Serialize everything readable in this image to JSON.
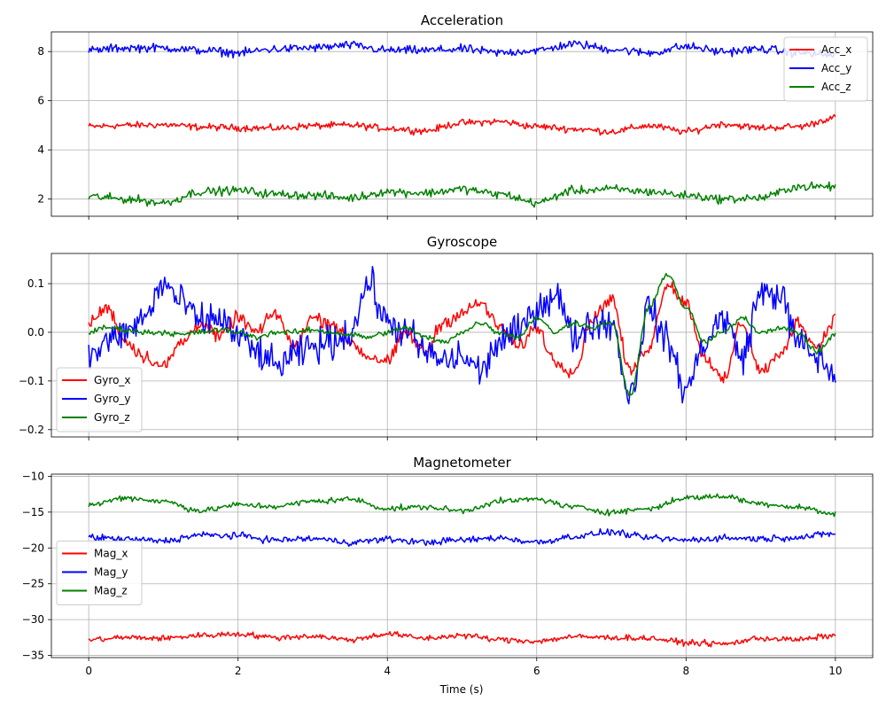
{
  "figure": {
    "xlabel": "Time (s)"
  },
  "chart_data": [
    {
      "type": "line",
      "title": "Acceleration",
      "xlabel": "",
      "ylabel": "",
      "xlim": [
        -0.5,
        10.5
      ],
      "ylim": [
        1.3,
        8.8
      ],
      "xticks": [
        0,
        2,
        4,
        6,
        8,
        10
      ],
      "yticks": [
        2,
        4,
        6,
        8
      ],
      "grid": true,
      "legend": "top-right",
      "series": [
        {
          "name": "Acc_x",
          "color": "#ff0000",
          "base": 5.0,
          "noise": 0.12,
          "x": [
            0,
            0.5,
            1,
            1.5,
            2,
            2.5,
            3,
            3.5,
            4,
            4.5,
            5,
            5.5,
            6,
            6.5,
            7,
            7.5,
            8,
            8.5,
            9,
            9.5,
            10
          ],
          "values": [
            4.95,
            5.0,
            5.02,
            4.93,
            4.9,
            4.88,
            4.98,
            5.0,
            4.88,
            4.78,
            5.1,
            5.15,
            4.95,
            4.85,
            4.75,
            4.98,
            4.75,
            5.05,
            4.9,
            4.95,
            5.3
          ]
        },
        {
          "name": "Acc_y",
          "color": "#0000ff",
          "base": 8.1,
          "noise": 0.15,
          "x": [
            0,
            0.5,
            1,
            1.5,
            2,
            2.5,
            3,
            3.5,
            4,
            4.5,
            5,
            5.5,
            6,
            6.5,
            7,
            7.5,
            8,
            8.5,
            9,
            9.5,
            10
          ],
          "values": [
            8.05,
            8.15,
            8.15,
            8.05,
            7.95,
            8.1,
            8.15,
            8.25,
            8.05,
            8.05,
            8.1,
            7.95,
            8.05,
            8.3,
            8.1,
            7.95,
            8.2,
            8.0,
            8.1,
            7.95,
            7.85
          ]
        },
        {
          "name": "Acc_z",
          "color": "#008000",
          "base": 2.2,
          "noise": 0.15,
          "x": [
            0,
            0.5,
            1,
            1.5,
            2,
            2.5,
            3,
            3.5,
            4,
            4.5,
            5,
            5.5,
            6,
            6.5,
            7,
            7.5,
            8,
            8.5,
            9,
            9.5,
            10
          ],
          "values": [
            2.1,
            2.0,
            1.85,
            2.3,
            2.35,
            2.2,
            2.15,
            2.05,
            2.3,
            2.25,
            2.4,
            2.2,
            1.85,
            2.35,
            2.4,
            2.3,
            2.15,
            2.0,
            2.05,
            2.5,
            2.5
          ]
        }
      ]
    },
    {
      "type": "line",
      "title": "Gyroscope",
      "xlabel": "",
      "ylabel": "",
      "xlim": [
        -0.5,
        10.5
      ],
      "ylim": [
        -0.215,
        0.162
      ],
      "xticks": [
        0,
        2,
        4,
        6,
        8,
        10
      ],
      "yticks": [
        -0.2,
        -0.1,
        0.0,
        0.1
      ],
      "ytick_labels": [
        "−0.2",
        "−0.1",
        "0.0",
        "0.1"
      ],
      "grid": true,
      "legend": "lower-left",
      "series": [
        {
          "name": "Gyro_x",
          "color": "#ff0000",
          "base": 0.0,
          "noise": 0.012,
          "x": [
            0,
            0.25,
            0.5,
            0.75,
            1,
            1.25,
            1.5,
            1.75,
            2,
            2.25,
            2.5,
            2.75,
            3,
            3.25,
            3.5,
            3.75,
            4,
            4.25,
            4.5,
            4.75,
            5,
            5.25,
            5.5,
            5.75,
            6,
            6.25,
            6.5,
            6.75,
            7,
            7.25,
            7.5,
            7.75,
            8,
            8.25,
            8.5,
            8.75,
            9,
            9.25,
            9.5,
            9.75,
            10
          ],
          "values": [
            0.02,
            0.05,
            -0.02,
            -0.05,
            -0.07,
            -0.02,
            0.02,
            -0.01,
            0.03,
            0.0,
            0.04,
            -0.03,
            0.03,
            0.02,
            -0.02,
            -0.05,
            -0.06,
            0.0,
            -0.04,
            0.02,
            0.04,
            0.06,
            0.01,
            -0.03,
            0.01,
            -0.06,
            -0.08,
            0.03,
            0.07,
            -0.08,
            -0.03,
            0.1,
            0.06,
            -0.05,
            -0.1,
            0.02,
            -0.08,
            -0.05,
            0.02,
            -0.03,
            0.03
          ]
        },
        {
          "name": "Gyro_y",
          "color": "#0000ff",
          "base": 0.0,
          "noise": 0.03,
          "x": [
            0,
            0.25,
            0.5,
            0.75,
            1,
            1.25,
            1.5,
            1.75,
            2,
            2.25,
            2.5,
            2.75,
            3,
            3.25,
            3.5,
            3.75,
            4,
            4.25,
            4.5,
            4.75,
            5,
            5.25,
            5.5,
            5.75,
            6,
            6.25,
            6.5,
            6.75,
            7,
            7.25,
            7.5,
            7.75,
            8,
            8.25,
            8.5,
            8.75,
            9,
            9.25,
            9.5,
            9.75,
            10
          ],
          "values": [
            -0.05,
            -0.02,
            0.0,
            0.03,
            0.1,
            0.06,
            0.02,
            0.03,
            -0.01,
            -0.04,
            -0.07,
            -0.05,
            -0.03,
            -0.02,
            0.0,
            0.1,
            0.02,
            0.0,
            -0.04,
            -0.06,
            -0.05,
            -0.08,
            -0.02,
            0.0,
            0.05,
            0.08,
            -0.01,
            0.02,
            0.02,
            -0.13,
            0.05,
            -0.02,
            -0.12,
            -0.02,
            0.03,
            -0.05,
            0.08,
            0.08,
            -0.02,
            -0.05,
            -0.09
          ]
        },
        {
          "name": "Gyro_z",
          "color": "#008000",
          "base": 0.0,
          "noise": 0.005,
          "x": [
            0,
            0.25,
            0.5,
            0.75,
            1,
            1.25,
            1.5,
            1.75,
            2,
            2.25,
            2.5,
            2.75,
            3,
            3.25,
            3.5,
            3.75,
            4,
            4.25,
            4.5,
            4.75,
            5,
            5.25,
            5.5,
            5.75,
            6,
            6.25,
            6.5,
            6.75,
            7,
            7.25,
            7.5,
            7.75,
            8,
            8.25,
            8.5,
            8.75,
            9,
            9.25,
            9.5,
            9.75,
            10
          ],
          "values": [
            0.0,
            0.01,
            0.005,
            0.0,
            0.0,
            -0.005,
            0.0,
            0.005,
            0.0,
            -0.01,
            0.0,
            0.0,
            0.005,
            0.0,
            -0.005,
            -0.01,
            0.0,
            0.01,
            -0.01,
            -0.02,
            0.0,
            0.02,
            0.0,
            -0.01,
            0.03,
            0.0,
            0.02,
            0.01,
            0.02,
            -0.13,
            0.05,
            0.12,
            0.05,
            -0.02,
            0.0,
            0.03,
            0.0,
            0.01,
            0.0,
            -0.04,
            -0.005
          ]
        }
      ]
    },
    {
      "type": "line",
      "title": "Magnetometer",
      "xlabel": "Time (s)",
      "ylabel": "",
      "xlim": [
        -0.5,
        10.5
      ],
      "ylim": [
        -35.3,
        -9.7
      ],
      "xticks": [
        0,
        2,
        4,
        6,
        8,
        10
      ],
      "yticks": [
        -35,
        -30,
        -25,
        -20,
        -15,
        -10
      ],
      "ytick_labels": [
        "−35",
        "−30",
        "−25",
        "−20",
        "−15",
        "−10"
      ],
      "grid": true,
      "legend": "center-left",
      "series": [
        {
          "name": "Mag_x",
          "color": "#ff0000",
          "base": -32.5,
          "noise": 0.35,
          "x": [
            0,
            0.5,
            1,
            1.5,
            2,
            2.5,
            3,
            3.5,
            4,
            4.5,
            5,
            5.5,
            6,
            6.5,
            7,
            7.5,
            8,
            8.5,
            9,
            9.5,
            10
          ],
          "values": [
            -32.8,
            -32.5,
            -32.6,
            -32.2,
            -32.0,
            -32.5,
            -32.3,
            -32.8,
            -32.0,
            -32.6,
            -32.2,
            -32.8,
            -33.0,
            -32.4,
            -32.5,
            -32.6,
            -33.2,
            -33.4,
            -32.6,
            -32.8,
            -32.2
          ]
        },
        {
          "name": "Mag_y",
          "color": "#0000ff",
          "base": -18.8,
          "noise": 0.4,
          "x": [
            0,
            0.5,
            1,
            1.5,
            2,
            2.5,
            3,
            3.5,
            4,
            4.5,
            5,
            5.5,
            6,
            6.5,
            7,
            7.5,
            8,
            8.5,
            9,
            9.5,
            10
          ],
          "values": [
            -18.5,
            -18.8,
            -19.0,
            -18.2,
            -18.3,
            -18.9,
            -18.7,
            -19.2,
            -18.8,
            -19.2,
            -18.9,
            -18.6,
            -19.2,
            -18.4,
            -17.8,
            -18.6,
            -18.9,
            -18.6,
            -18.7,
            -18.5,
            -18.0
          ]
        },
        {
          "name": "Mag_z",
          "color": "#008000",
          "base": -14.0,
          "noise": 0.35,
          "x": [
            0,
            0.5,
            1,
            1.5,
            2,
            2.5,
            3,
            3.5,
            4,
            4.5,
            5,
            5.5,
            6,
            6.5,
            7,
            7.5,
            8,
            8.5,
            9,
            9.5,
            10
          ],
          "values": [
            -14.0,
            -13.0,
            -13.5,
            -14.8,
            -14.0,
            -14.2,
            -13.5,
            -13.2,
            -14.5,
            -14.3,
            -14.8,
            -13.5,
            -13.2,
            -14.3,
            -15.0,
            -14.5,
            -13.0,
            -12.8,
            -13.8,
            -14.3,
            -15.3
          ]
        }
      ]
    }
  ]
}
